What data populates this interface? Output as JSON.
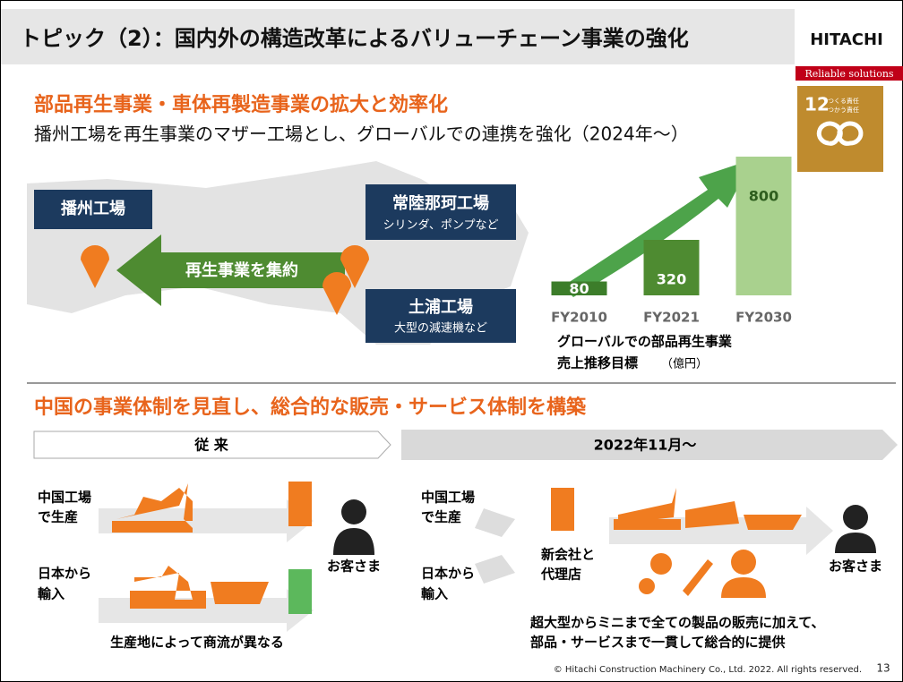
{
  "header": {
    "title": "トピック（2）：国内外の構造改革によるバリューチェーン事業の強化",
    "logo": "HITACHI",
    "tagline": "Reliable solutions"
  },
  "sdg": {
    "number": "12",
    "lines": [
      "つくる責任",
      "つかう責任"
    ]
  },
  "section1": {
    "heading": "部品再生事業・車体再製造事業の拡大と効率化",
    "subtitle": "播州工場を再生事業のマザー工場とし、グローバルでの連携を強化（2024年～）",
    "plants": [
      {
        "name": "播州工場"
      },
      {
        "name": "常陸那珂工場",
        "note": "シリンダ、ポンプなど"
      },
      {
        "name": "土浦工場",
        "note": "大型の減速機など"
      }
    ],
    "arrow": "再生事業を集約"
  },
  "chart_data": {
    "type": "bar",
    "categories": [
      "FY2010",
      "FY2021",
      "FY2030"
    ],
    "values": [
      80,
      320,
      800
    ],
    "colors": [
      "#3c7d2a",
      "#4e8b31",
      "#a9d18e"
    ],
    "caption": [
      "グローバルでの部品再生事業",
      "売上推移目標"
    ],
    "unit": "（億円）"
  },
  "section2": {
    "heading": "中国の事業体制を見直し、総合的な販売・サービス体制を構築",
    "before": {
      "header": "従 来",
      "row1": [
        "中国工場",
        "で生産"
      ],
      "row2": [
        "日本から",
        "輸入"
      ],
      "customer": "お客さま",
      "note": "生産地によって商流が異なる"
    },
    "after": {
      "header": "2022年11月～",
      "row1": [
        "中国工場",
        "で生産"
      ],
      "row2": [
        "日本から",
        "輸入"
      ],
      "hub": [
        "新会社と",
        "代理店"
      ],
      "customer": "お客さま",
      "note": [
        "超大型からミニまで全ての製品の販売に加えて、",
        "部品・サービスまで一貫して総合的に提供"
      ]
    }
  },
  "footer": {
    "copyright": "© Hitachi Construction Machinery Co., Ltd. 2022. All rights reserved.",
    "page": "13"
  }
}
